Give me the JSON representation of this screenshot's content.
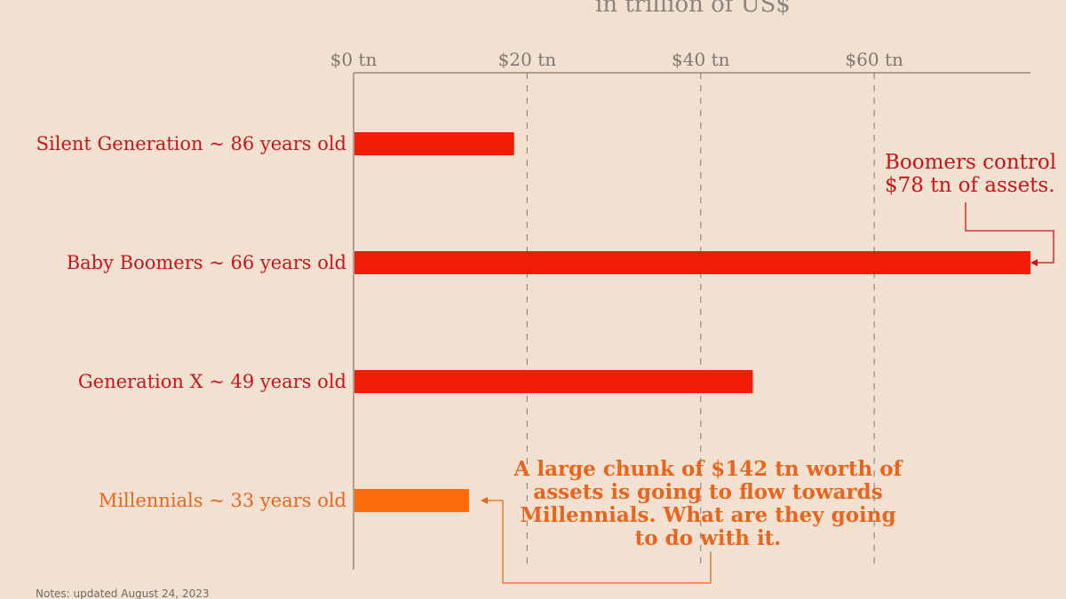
{
  "chart_data": {
    "type": "bar",
    "orientation": "horizontal",
    "subtitle": "in trillion of US$",
    "x_ticks": [
      {
        "value": 0,
        "label": "$0 tn"
      },
      {
        "value": 20,
        "label": "$20 tn"
      },
      {
        "value": 40,
        "label": "$40 tn"
      },
      {
        "value": 60,
        "label": "$60 tn"
      }
    ],
    "xlim": [
      0,
      78
    ],
    "grid": "vertical dashed",
    "categories": [
      "Silent Generation ~ 86 years old",
      "Baby Boomers ~ 66 years old",
      "Generation X ~ 49 years old",
      "Millennials ~ 33 years old"
    ],
    "values": [
      18.5,
      78,
      46,
      13.3
    ],
    "bar_colors": [
      "#f01c05",
      "#f01c05",
      "#f01c05",
      "#fa6b0c"
    ],
    "label_colors": [
      "#c8141a",
      "#c8141a",
      "#c8141a",
      "#e8651e"
    ],
    "annotations": [
      {
        "text": "Boomers control $78 tn of assets.",
        "points_to": "Baby Boomers ~ 66 years old"
      },
      {
        "text": "A large chunk of $142 tn worth of assets is going to flow towards Millennials. What are they going to do with it.",
        "points_to": "Millennials ~ 33 years old"
      }
    ]
  },
  "footnote": "Notes: updated August 24, 2023",
  "colors": {
    "background": "#f2e1d0",
    "axis": "#7d7874",
    "grid": "#8f8a86",
    "boomer_arrow": "#c8141a",
    "millennial_arrow": "#e8651e"
  }
}
